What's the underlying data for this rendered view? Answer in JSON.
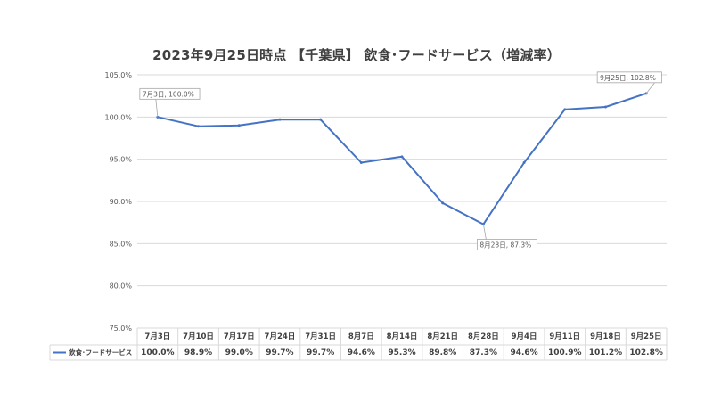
{
  "chart_data": {
    "type": "line",
    "title": "2023年9月25日時点 【千葉県】 飲食･フードサービス（増減率）",
    "categories": [
      "7月3日",
      "7月10日",
      "7月17日",
      "7月24日",
      "7月31日",
      "8月7日",
      "8月14日",
      "8月21日",
      "8月28日",
      "9月4日",
      "9月11日",
      "9月18日",
      "9月25日"
    ],
    "series": [
      {
        "name": "飲食･フードサービス",
        "values": [
          100.0,
          98.9,
          99.0,
          99.7,
          99.7,
          94.6,
          95.3,
          89.8,
          87.3,
          94.6,
          100.9,
          101.2,
          102.8
        ],
        "value_labels": [
          "100.0%",
          "98.9%",
          "99.0%",
          "99.7%",
          "99.7%",
          "94.6%",
          "95.3%",
          "89.8%",
          "87.3%",
          "94.6%",
          "100.9%",
          "101.2%",
          "102.8%"
        ],
        "color": "#4472c4"
      }
    ],
    "ylim": [
      75,
      105
    ],
    "yticks": [
      75,
      80,
      85,
      90,
      95,
      100,
      105
    ],
    "ytick_labels": [
      "75.0%",
      "80.0%",
      "85.0%",
      "90.0%",
      "95.0%",
      "100.0%",
      "105.0%"
    ],
    "grid": true,
    "legend": "data-table",
    "annotations": [
      {
        "index": 0,
        "text": "7月3日, 100.0%"
      },
      {
        "index": 8,
        "text": "8月28日, 87.3%"
      },
      {
        "index": 12,
        "text": "9月25日, 102.8%"
      }
    ]
  }
}
